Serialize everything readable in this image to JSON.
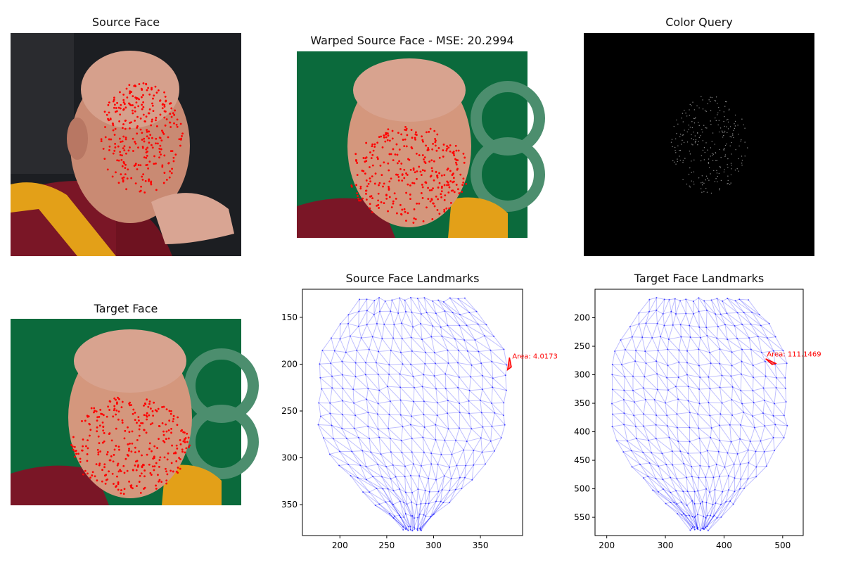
{
  "panels": {
    "source_face": {
      "title": "Source Face"
    },
    "warped_face": {
      "title": "Warped Source Face - MSE: 20.2994"
    },
    "color_query": {
      "title": "Color Query"
    },
    "target_face": {
      "title": "Target Face"
    }
  },
  "chart_data": [
    {
      "type": "scatter",
      "title": "Source Face Landmarks",
      "xlabel": "",
      "ylabel": "",
      "xlim": [
        160,
        395
      ],
      "ylim": [
        383,
        120
      ],
      "y_inverted": true,
      "xticks": [
        200,
        250,
        300,
        350
      ],
      "yticks": [
        150,
        200,
        250,
        300,
        350
      ],
      "annotation": {
        "text": "Area: 4.0173",
        "x": 384,
        "y": 194
      },
      "highlighted_triangle": [
        [
          381,
          193
        ],
        [
          383,
          203
        ],
        [
          379,
          206
        ]
      ]
    },
    {
      "type": "scatter",
      "title": "Target Face Landmarks",
      "xlabel": "",
      "ylabel": "",
      "xlim": [
        180,
        535
      ],
      "ylim": [
        582,
        150
      ],
      "y_inverted": true,
      "xticks": [
        200,
        300,
        400,
        500
      ],
      "yticks": [
        200,
        250,
        300,
        350,
        400,
        450,
        500,
        550
      ],
      "annotation": {
        "text": "Area: 111.1469",
        "x": 473,
        "y": 268
      },
      "highlighted_triangle": [
        [
          471,
          272
        ],
        [
          482,
          282
        ],
        [
          488,
          280
        ]
      ]
    }
  ],
  "colors": {
    "landmark_dot": "#ff0000",
    "mesh_line": "#0000ff",
    "annotation": "#ff0000",
    "green_bg": "#0b6a3c",
    "black_bg": "#000000"
  }
}
